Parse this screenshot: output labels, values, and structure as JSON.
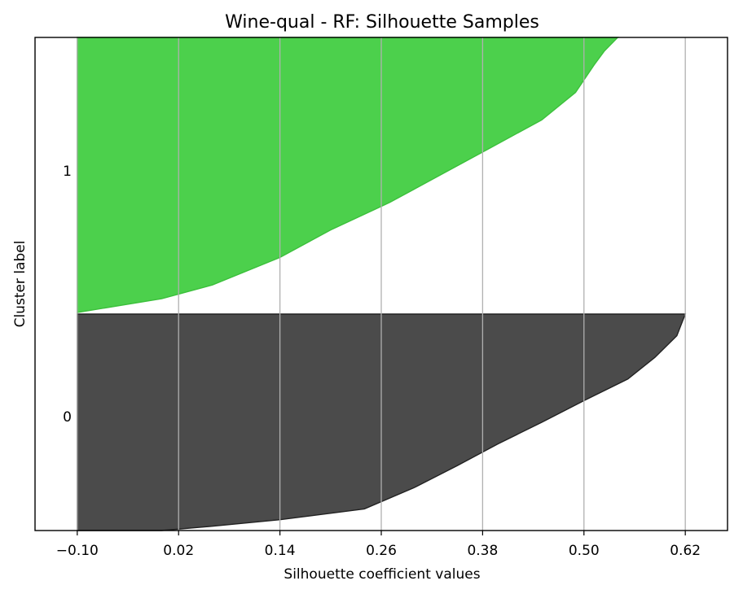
{
  "chart_data": {
    "type": "area",
    "title": "Wine-qual - RF: Silhouette Samples",
    "xlabel": "Silhouette coefficient values",
    "ylabel": "Cluster label",
    "xlim": [
      -0.15,
      0.67
    ],
    "xticks": [
      -0.1,
      0.02,
      0.14,
      0.26,
      0.38,
      0.5,
      0.62
    ],
    "xtick_labels": [
      "−0.10",
      "0.02",
      "0.14",
      "0.26",
      "0.38",
      "0.50",
      "0.62"
    ],
    "grid": "x",
    "clusters": [
      {
        "label": "0",
        "color": "#4b4b4b",
        "edge_color": "#222222",
        "sample_fraction": [
          0,
          0.1,
          0.2,
          0.3,
          0.4,
          0.5,
          0.6,
          0.7,
          0.8,
          0.9,
          0.95,
          0.98,
          1.0
        ],
        "silhouette_values": [
          0.62,
          0.61,
          0.584,
          0.552,
          0.5,
          0.45,
          0.398,
          0.35,
          0.3,
          0.24,
          0.14,
          0.06,
          0.0
        ]
      },
      {
        "label": "1",
        "color": "#4cd04c",
        "edge_color": "#3cc03c",
        "sample_fraction": [
          0,
          0.05,
          0.1,
          0.2,
          0.3,
          0.4,
          0.5,
          0.6,
          0.7,
          0.8,
          0.9,
          0.95,
          1.0
        ],
        "silhouette_values": [
          0.54,
          0.524,
          0.512,
          0.49,
          0.45,
          0.39,
          0.33,
          0.27,
          0.2,
          0.14,
          0.06,
          0.0,
          -0.1
        ]
      }
    ]
  }
}
